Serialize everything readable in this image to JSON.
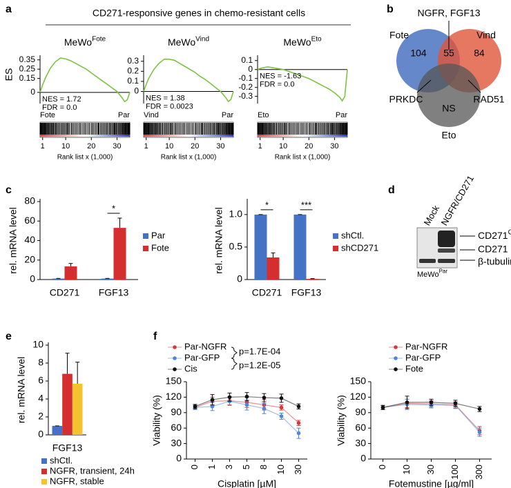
{
  "panel_labels": [
    "a",
    "b",
    "c",
    "d",
    "e",
    "f"
  ],
  "header_title": "CD271-responsive genes in chemo-resistant cells",
  "venn": {
    "sets": [
      {
        "name": "Fote",
        "count": 104,
        "color": "#4a73c2"
      },
      {
        "name": "Vind",
        "count": 84,
        "color": "#e0553a"
      },
      {
        "name": "Eto",
        "count_label": "NS",
        "color": "#555555"
      }
    ],
    "overlap": 55,
    "callouts": [
      "NGFR, FGF13",
      "PRKDC",
      "RAD51"
    ]
  },
  "blot": {
    "lanes": [
      "Mock",
      "NGFR/CD271"
    ],
    "bands": [
      {
        "label": "CD271",
        "superscript": "GFP"
      },
      {
        "label": "CD271"
      },
      {
        "label": "β-tubulin"
      }
    ],
    "cell_line": "MeWo",
    "cell_line_superscript": "Par"
  },
  "chart_data": [
    {
      "type": "gsea",
      "title": "MeWo",
      "title_superscript": "Fote",
      "y_label": "ES",
      "x_label": "Rank list x (1,000)",
      "color": "#7dc242",
      "x": [
        0,
        1,
        2,
        4,
        6,
        8,
        10,
        12,
        14,
        16,
        18,
        20,
        22,
        24,
        26,
        28,
        30,
        32,
        33,
        34,
        35
      ],
      "values": [
        0,
        0.08,
        0.15,
        0.26,
        0.33,
        0.37,
        0.36,
        0.34,
        0.31,
        0.28,
        0.25,
        0.21,
        0.17,
        0.13,
        0.09,
        0.05,
        0.01,
        -0.06,
        -0.1,
        -0.08,
        0
      ],
      "xlim": [
        0,
        35
      ],
      "ylim": [
        -0.12,
        0.4
      ],
      "xticks": [
        1,
        10,
        20,
        30
      ],
      "yticks": [
        0.35,
        0.25,
        0.15,
        0
      ],
      "annotations": [
        "NES = 1.72",
        "FDR = 0.0"
      ],
      "phenotypes": [
        "Fote",
        "Par"
      ],
      "phenotype_colors": [
        "#e8413c",
        "#4aa3df"
      ]
    },
    {
      "type": "gsea",
      "title": "MeWo",
      "title_superscript": "Vind",
      "x_label": "Rank list x (1,000)",
      "color": "#7dc242",
      "x": [
        0,
        1,
        2,
        4,
        6,
        8,
        10,
        12,
        14,
        16,
        18,
        20,
        22,
        24,
        26,
        28,
        30,
        32,
        33,
        34,
        35
      ],
      "values": [
        0,
        0.07,
        0.13,
        0.22,
        0.28,
        0.32,
        0.32,
        0.31,
        0.28,
        0.25,
        0.22,
        0.19,
        0.15,
        0.12,
        0.08,
        0.04,
        0,
        -0.06,
        -0.1,
        -0.08,
        0
      ],
      "xlim": [
        0,
        35
      ],
      "ylim": [
        -0.12,
        0.36
      ],
      "xticks": [
        1,
        10,
        20,
        30
      ],
      "yticks": [
        0.3,
        0.2,
        0.1,
        0
      ],
      "annotations": [
        "NES = 1.38",
        "FDR = 0.0023"
      ],
      "phenotypes": [
        "Vind",
        "Par"
      ],
      "phenotype_colors": [
        "#e8413c",
        "#4aa3df"
      ]
    },
    {
      "type": "gsea",
      "title": "MeWo",
      "title_superscript": "Eto",
      "x_label": "Rank list x (1,000)",
      "color": "#7dc242",
      "x": [
        0,
        1,
        2,
        4,
        6,
        8,
        10,
        12,
        14,
        16,
        18,
        20,
        22,
        24,
        26,
        28,
        30,
        32,
        33,
        34,
        35
      ],
      "values": [
        0,
        0.01,
        0.02,
        0.03,
        0.02,
        0.01,
        0,
        -0.02,
        -0.04,
        -0.06,
        -0.08,
        -0.1,
        -0.13,
        -0.16,
        -0.19,
        -0.22,
        -0.26,
        -0.31,
        -0.35,
        -0.3,
        0
      ],
      "xlim": [
        0,
        35
      ],
      "ylim": [
        -0.38,
        0.16
      ],
      "xticks": [
        1,
        10,
        20,
        30
      ],
      "yticks": [
        0.1,
        0,
        -0.1,
        -0.2,
        -0.3
      ],
      "annotations": [
        "NES = -1.63",
        "FDR = 0.0"
      ],
      "phenotypes": [
        "Eto",
        "Par"
      ],
      "phenotype_colors": [
        "#e8413c",
        "#4aa3df"
      ]
    },
    {
      "type": "bar",
      "y_label": "rel. mRNA level",
      "categories": [
        "CD271",
        "FGF13"
      ],
      "series": [
        {
          "name": "Par",
          "color": "#4472c4",
          "values": [
            1,
            1
          ],
          "errors": [
            0.2,
            0.2
          ]
        },
        {
          "name": "Fote",
          "color": "#d42e2e",
          "values": [
            13.5,
            53
          ],
          "errors": [
            3,
            10
          ]
        }
      ],
      "significance": [
        null,
        "*"
      ],
      "ylim": [
        0,
        80
      ],
      "yticks": [
        0,
        20,
        40,
        60,
        80
      ]
    },
    {
      "type": "bar",
      "y_label": "rel. mRNA level",
      "categories": [
        "CD271",
        "FGF13"
      ],
      "series": [
        {
          "name": "shCtl.",
          "color": "#4472c4",
          "values": [
            1,
            1
          ],
          "errors": [
            0,
            0
          ]
        },
        {
          "name": "shCD271",
          "color": "#d42e2e",
          "values": [
            0.34,
            0.01
          ],
          "errors": [
            0.07,
            0.005
          ]
        }
      ],
      "significance": [
        "*",
        "***"
      ],
      "ylim": [
        0,
        1.2
      ],
      "yticks": [
        0,
        0.5,
        {
          "value": 1,
          "label": "1.0"
        }
      ]
    },
    {
      "type": "bar",
      "y_label": "rel. mRNA level",
      "categories": [
        "FGF13"
      ],
      "series": [
        {
          "name": "shCtl.",
          "color": "#4472c4",
          "values": [
            1
          ],
          "errors": [
            0
          ]
        },
        {
          "name": "NGFR, transient, 24h",
          "color": "#d42e2e",
          "values": [
            6.8
          ],
          "errors": [
            2.3
          ]
        },
        {
          "name": "NGFR, stable",
          "color": "#f5c330",
          "values": [
            5.7
          ],
          "errors": [
            2.4
          ]
        }
      ],
      "ylim": [
        0,
        10
      ],
      "yticks": [
        0,
        2,
        4,
        6,
        8,
        10
      ]
    },
    {
      "type": "line",
      "y_label": "Viability (%)",
      "x_label": "Cisplatin [µM]",
      "categories": [
        "0",
        "1",
        "3",
        "5",
        "8",
        "10",
        "30"
      ],
      "series": [
        {
          "name": "Par-NGFR",
          "color": "#d9383a",
          "values": [
            100,
            112,
            113,
            110,
            105,
            100,
            70
          ],
          "errors": [
            4,
            8,
            8,
            10,
            10,
            5,
            5
          ]
        },
        {
          "name": "Par-GFP",
          "color": "#4f86d6",
          "values": [
            100,
            102,
            112,
            105,
            98,
            83,
            50
          ],
          "errors": [
            4,
            8,
            8,
            10,
            10,
            6,
            10
          ]
        },
        {
          "name": "Cis",
          "color": "#111111",
          "values": [
            102,
            115,
            120,
            121,
            119,
            118,
            102
          ],
          "errors": [
            4,
            10,
            8,
            8,
            8,
            8,
            5
          ]
        }
      ],
      "p_values": [
        "p=1.7E-04",
        "p=1.2E-05"
      ],
      "ylim": [
        0,
        150
      ],
      "yticks": [
        0,
        30,
        60,
        90,
        120,
        150
      ]
    },
    {
      "type": "line",
      "y_label": "Viability (%)",
      "x_label": "Fotemustine [µg/ml]",
      "categories": [
        "0",
        "10",
        "30",
        "100",
        "300"
      ],
      "series": [
        {
          "name": "Par-NGFR",
          "color": "#d9383a",
          "values": [
            100,
            108,
            107,
            105,
            55
          ],
          "errors": [
            4,
            8,
            6,
            6,
            8
          ]
        },
        {
          "name": "Par-GFP",
          "color": "#4f86d6",
          "values": [
            100,
            106,
            105,
            104,
            52
          ],
          "errors": [
            4,
            10,
            6,
            6,
            8
          ]
        },
        {
          "name": "Fote",
          "color": "#111111",
          "values": [
            100,
            110,
            110,
            108,
            97
          ],
          "errors": [
            4,
            12,
            6,
            6,
            5
          ]
        }
      ],
      "ylim": [
        0,
        150
      ],
      "yticks": [
        0,
        30,
        60,
        90,
        120,
        150
      ]
    }
  ]
}
